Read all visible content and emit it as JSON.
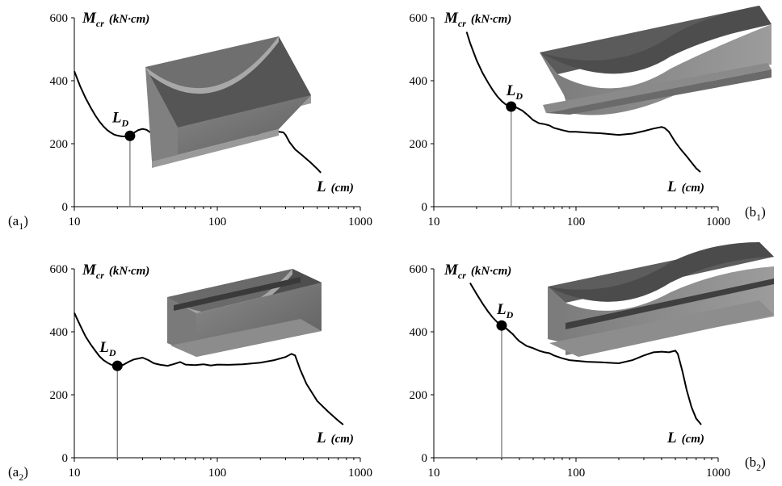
{
  "chart_data": [
    {
      "id": "a1",
      "type": "line",
      "panel_label": "a",
      "panel_label_sub": "1",
      "ylabel": "M",
      "ylabel_sub": "cr",
      "ylabel_unit": "(kN·cm)",
      "xlabel": "L",
      "xlabel_unit": "(cm)",
      "x_scale": "log",
      "xlim": [
        10,
        1000
      ],
      "ylim": [
        0,
        600
      ],
      "xticks": [
        "10",
        "100",
        "1000"
      ],
      "yticks": [
        "0",
        "200",
        "400",
        "600"
      ],
      "marker": {
        "label": "L",
        "label_sub": "D",
        "x": 24.5,
        "y": 225
      },
      "series": [
        {
          "x": [
            10,
            11,
            12,
            13,
            14,
            15,
            16,
            17,
            18,
            19,
            20,
            21,
            22,
            23,
            24.5,
            26,
            28,
            30,
            32,
            34,
            36,
            40,
            44,
            48,
            52,
            56,
            60,
            70,
            80,
            90,
            100,
            120,
            150,
            200,
            250,
            270,
            290,
            300,
            320,
            350,
            400,
            450,
            500,
            530
          ],
          "y": [
            430,
            382,
            345,
            315,
            290,
            270,
            255,
            243,
            235,
            229,
            226,
            224,
            223,
            223,
            225,
            234,
            243,
            247,
            244,
            236,
            230,
            222,
            222,
            227,
            232,
            226,
            221,
            226,
            223,
            225,
            225,
            227,
            227,
            229,
            234,
            238,
            236,
            228,
            205,
            182,
            160,
            140,
            120,
            108
          ]
        }
      ]
    },
    {
      "id": "b1",
      "type": "line",
      "panel_label": "b",
      "panel_label_sub": "1",
      "ylabel": "M",
      "ylabel_sub": "cr",
      "ylabel_unit": "(kN·cm)",
      "xlabel": "L",
      "xlabel_unit": "(cm)",
      "x_scale": "log",
      "xlim": [
        10,
        1000
      ],
      "ylim": [
        0,
        600
      ],
      "xticks": [
        "10",
        "100",
        "1000"
      ],
      "yticks": [
        "0",
        "200",
        "400",
        "600"
      ],
      "marker": {
        "label": "L",
        "label_sub": "D",
        "x": 35,
        "y": 318
      },
      "series": [
        {
          "x": [
            17,
            18,
            20,
            22,
            24,
            26,
            28,
            30,
            32,
            35,
            38,
            42,
            46,
            50,
            55,
            60,
            65,
            70,
            80,
            90,
            100,
            120,
            150,
            200,
            250,
            300,
            350,
            400,
            420,
            450,
            500,
            550,
            600,
            650,
            700,
            750
          ],
          "y": [
            555,
            520,
            465,
            425,
            395,
            370,
            350,
            335,
            325,
            318,
            315,
            305,
            290,
            275,
            265,
            262,
            258,
            250,
            243,
            238,
            238,
            235,
            233,
            228,
            232,
            240,
            248,
            253,
            250,
            238,
            205,
            180,
            160,
            140,
            122,
            110
          ]
        }
      ]
    },
    {
      "id": "a2",
      "type": "line",
      "panel_label": "a",
      "panel_label_sub": "2",
      "ylabel": "M",
      "ylabel_sub": "cr",
      "ylabel_unit": "(kN·cm)",
      "xlabel": "L",
      "xlabel_unit": "(cm)",
      "x_scale": "log",
      "xlim": [
        10,
        1000
      ],
      "ylim": [
        0,
        600
      ],
      "xticks": [
        "10",
        "100",
        "1000"
      ],
      "yticks": [
        "0",
        "200",
        "400",
        "600"
      ],
      "marker": {
        "label": "L",
        "label_sub": "D",
        "x": 20,
        "y": 292
      },
      "series": [
        {
          "x": [
            10,
            11,
            12,
            13,
            14,
            15,
            16,
            17,
            18,
            19,
            20,
            22,
            24,
            26,
            28,
            30,
            33,
            36,
            40,
            45,
            50,
            55,
            60,
            70,
            80,
            90,
            100,
            120,
            150,
            200,
            250,
            300,
            330,
            350,
            380,
            420,
            500,
            600,
            700,
            760
          ],
          "y": [
            460,
            420,
            385,
            360,
            340,
            322,
            310,
            302,
            296,
            293,
            292,
            295,
            305,
            312,
            315,
            318,
            310,
            300,
            295,
            292,
            298,
            304,
            296,
            294,
            297,
            293,
            296,
            295,
            297,
            302,
            310,
            320,
            330,
            325,
            280,
            235,
            180,
            145,
            118,
            105
          ]
        }
      ]
    },
    {
      "id": "b2",
      "type": "line",
      "panel_label": "b",
      "panel_label_sub": "2",
      "ylabel": "M",
      "ylabel_sub": "cr",
      "ylabel_unit": "(kN·cm)",
      "xlabel": "L",
      "xlabel_unit": "(cm)",
      "x_scale": "log",
      "xlim": [
        10,
        1000
      ],
      "ylim": [
        0,
        600
      ],
      "xticks": [
        "10",
        "100",
        "1000"
      ],
      "yticks": [
        "0",
        "200",
        "400",
        "600"
      ],
      "marker": {
        "label": "L",
        "label_sub": "D",
        "x": 30,
        "y": 420
      },
      "series": [
        {
          "x": [
            18,
            20,
            22,
            24,
            26,
            28,
            30,
            32,
            34,
            36,
            38,
            40,
            45,
            50,
            55,
            60,
            65,
            70,
            80,
            90,
            100,
            120,
            150,
            200,
            250,
            300,
            350,
            400,
            450,
            500,
            520,
            560,
            600,
            650,
            700,
            760
          ],
          "y": [
            555,
            520,
            490,
            465,
            445,
            430,
            420,
            412,
            402,
            392,
            380,
            370,
            355,
            348,
            340,
            335,
            332,
            325,
            316,
            310,
            308,
            305,
            303,
            300,
            310,
            325,
            335,
            337,
            335,
            340,
            330,
            275,
            215,
            160,
            125,
            105
          ]
        }
      ]
    }
  ]
}
